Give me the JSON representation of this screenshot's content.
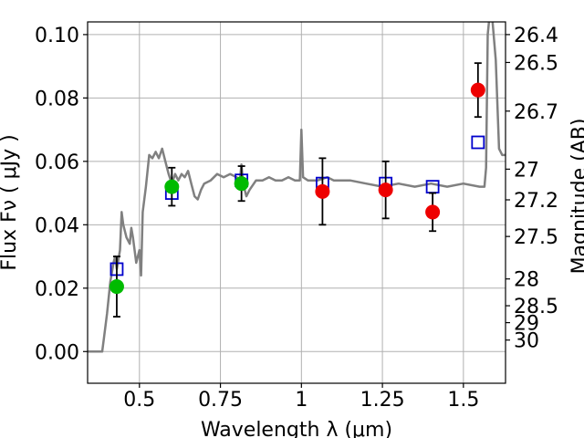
{
  "chart_data": {
    "type": "scatter",
    "title": "",
    "xlabel": "Wavelength  λ (μm)",
    "ylabel": "Flux  Fν  ( μJy )",
    "ylabel_right": "Magnitude (AB)",
    "xlim": [
      0.34,
      1.63
    ],
    "ylim": [
      -0.01,
      0.104
    ],
    "grid": true,
    "legend": "none",
    "x_ticks": [
      0.5,
      0.75,
      1.0,
      1.25,
      1.5
    ],
    "x_tick_labels": [
      "0.5",
      "0.75",
      "1",
      "1.25",
      "1.5"
    ],
    "y_ticks": [
      0.0,
      0.02,
      0.04,
      0.06,
      0.08,
      0.1
    ],
    "y_tick_labels": [
      "0.00",
      "0.02",
      "0.04",
      "0.06",
      "0.08",
      "0.10"
    ],
    "mag_ticks": [
      {
        "mag": 26.4,
        "label": "26.4"
      },
      {
        "mag": 26.5,
        "label": "26.5"
      },
      {
        "mag": 26.7,
        "label": "26.7"
      },
      {
        "mag": 27.0,
        "label": "27"
      },
      {
        "mag": 27.2,
        "label": "27.2"
      },
      {
        "mag": 27.5,
        "label": "27.5"
      },
      {
        "mag": 28.0,
        "label": "28"
      },
      {
        "mag": 28.5,
        "label": "28.5"
      },
      {
        "mag": 29.0,
        "label": "29"
      },
      {
        "mag": 30.0,
        "label": "30"
      }
    ],
    "model_spectrum": {
      "color": "#808080",
      "points": [
        [
          0.34,
          0.0
        ],
        [
          0.385,
          0.0
        ],
        [
          0.39,
          0.004
        ],
        [
          0.4,
          0.012
        ],
        [
          0.41,
          0.022
        ],
        [
          0.42,
          0.028
        ],
        [
          0.425,
          0.03
        ],
        [
          0.43,
          0.026
        ],
        [
          0.44,
          0.032
        ],
        [
          0.445,
          0.044
        ],
        [
          0.45,
          0.04
        ],
        [
          0.46,
          0.036
        ],
        [
          0.47,
          0.034
        ],
        [
          0.475,
          0.039
        ],
        [
          0.48,
          0.036
        ],
        [
          0.49,
          0.028
        ],
        [
          0.5,
          0.032
        ],
        [
          0.505,
          0.024
        ],
        [
          0.51,
          0.044
        ],
        [
          0.52,
          0.052
        ],
        [
          0.53,
          0.062
        ],
        [
          0.54,
          0.061
        ],
        [
          0.55,
          0.063
        ],
        [
          0.56,
          0.061
        ],
        [
          0.57,
          0.064
        ],
        [
          0.58,
          0.06
        ],
        [
          0.59,
          0.056
        ],
        [
          0.6,
          0.053
        ],
        [
          0.61,
          0.056
        ],
        [
          0.62,
          0.054
        ],
        [
          0.63,
          0.056
        ],
        [
          0.64,
          0.055
        ],
        [
          0.65,
          0.057
        ],
        [
          0.66,
          0.053
        ],
        [
          0.67,
          0.049
        ],
        [
          0.68,
          0.048
        ],
        [
          0.69,
          0.051
        ],
        [
          0.7,
          0.053
        ],
        [
          0.72,
          0.054
        ],
        [
          0.74,
          0.056
        ],
        [
          0.76,
          0.055
        ],
        [
          0.78,
          0.056
        ],
        [
          0.8,
          0.055
        ],
        [
          0.81,
          0.054
        ],
        [
          0.815,
          0.059
        ],
        [
          0.82,
          0.053
        ],
        [
          0.83,
          0.049
        ],
        [
          0.84,
          0.051
        ],
        [
          0.86,
          0.054
        ],
        [
          0.88,
          0.054
        ],
        [
          0.9,
          0.055
        ],
        [
          0.92,
          0.054
        ],
        [
          0.94,
          0.054
        ],
        [
          0.96,
          0.055
        ],
        [
          0.98,
          0.054
        ],
        [
          0.995,
          0.054
        ],
        [
          1.0,
          0.07
        ],
        [
          1.005,
          0.055
        ],
        [
          1.02,
          0.054
        ],
        [
          1.05,
          0.054
        ],
        [
          1.08,
          0.055
        ],
        [
          1.1,
          0.054
        ],
        [
          1.15,
          0.054
        ],
        [
          1.2,
          0.053
        ],
        [
          1.25,
          0.052
        ],
        [
          1.3,
          0.053
        ],
        [
          1.35,
          0.052
        ],
        [
          1.4,
          0.053
        ],
        [
          1.45,
          0.052
        ],
        [
          1.5,
          0.053
        ],
        [
          1.55,
          0.052
        ],
        [
          1.565,
          0.052
        ],
        [
          1.57,
          0.058
        ],
        [
          1.575,
          0.1
        ],
        [
          1.58,
          0.105
        ],
        [
          1.59,
          0.104
        ],
        [
          1.6,
          0.092
        ],
        [
          1.61,
          0.064
        ],
        [
          1.62,
          0.062
        ],
        [
          1.63,
          0.062
        ]
      ]
    },
    "model_photometry": {
      "marker": "open-square",
      "color": "#0000cc",
      "points": [
        [
          0.43,
          0.026
        ],
        [
          0.6,
          0.05
        ],
        [
          0.815,
          0.054
        ],
        [
          1.065,
          0.053
        ],
        [
          1.26,
          0.053
        ],
        [
          1.405,
          0.052
        ],
        [
          1.545,
          0.066
        ]
      ]
    },
    "observed": {
      "marker": "filled-circle",
      "points": [
        {
          "x": 0.43,
          "y": 0.0205,
          "err": 0.0095,
          "color": "#00bb00"
        },
        {
          "x": 0.6,
          "y": 0.052,
          "err": 0.006,
          "color": "#00bb00"
        },
        {
          "x": 0.815,
          "y": 0.053,
          "err": 0.0055,
          "color": "#00bb00"
        },
        {
          "x": 1.065,
          "y": 0.0505,
          "err": 0.0105,
          "color": "#ee0000"
        },
        {
          "x": 1.26,
          "y": 0.051,
          "err": 0.009,
          "color": "#ee0000"
        },
        {
          "x": 1.405,
          "y": 0.044,
          "err": 0.006,
          "color": "#ee0000"
        },
        {
          "x": 1.545,
          "y": 0.0825,
          "err": 0.0085,
          "color": "#ee0000"
        }
      ]
    }
  }
}
